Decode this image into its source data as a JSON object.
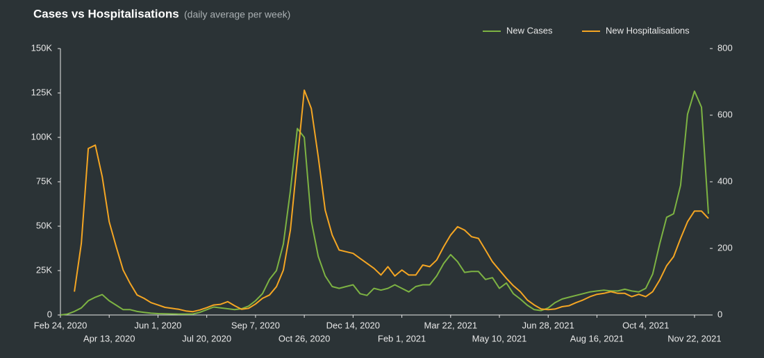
{
  "chart_data": {
    "type": "line",
    "title": "Cases vs Hospitalisations",
    "subtitle": "(daily average per week)",
    "categories": [
      "Feb 24, 2020",
      null,
      null,
      null,
      null,
      null,
      null,
      "Apr 13, 2020",
      null,
      null,
      null,
      null,
      null,
      null,
      "Jun 1, 2020",
      null,
      null,
      null,
      null,
      null,
      null,
      "Jul 20, 2020",
      null,
      null,
      null,
      null,
      null,
      null,
      "Sep 7, 2020",
      null,
      null,
      null,
      null,
      null,
      null,
      "Oct 26, 2020",
      null,
      null,
      null,
      null,
      null,
      null,
      "Dec 14, 2020",
      null,
      null,
      null,
      null,
      null,
      null,
      "Feb 1, 2021",
      null,
      null,
      null,
      null,
      null,
      null,
      "Mar 22, 2021",
      null,
      null,
      null,
      null,
      null,
      null,
      "May 10, 2021",
      null,
      null,
      null,
      null,
      null,
      null,
      "Jun 28, 2021",
      null,
      null,
      null,
      null,
      null,
      null,
      "Aug 16, 2021",
      null,
      null,
      null,
      null,
      null,
      null,
      "Oct 4, 2021",
      null,
      null,
      null,
      null,
      null,
      null,
      "Nov 22, 2021",
      null,
      null
    ],
    "series": [
      {
        "name": "New Cases",
        "color": "#7db343",
        "values": [
          0,
          500,
          2000,
          4000,
          8000,
          10000,
          11500,
          8000,
          5500,
          3000,
          3000,
          2000,
          1500,
          1000,
          800,
          700,
          600,
          500,
          500,
          500,
          1500,
          3000,
          4500,
          4000,
          3500,
          3000,
          3500,
          5000,
          8000,
          12000,
          20000,
          25000,
          40000,
          70000,
          105000,
          100000,
          53000,
          33000,
          22000,
          16000,
          15000,
          16000,
          17000,
          12000,
          11000,
          15000,
          14000,
          15000,
          17000,
          15000,
          13000,
          16000,
          17000,
          17000,
          22000,
          29000,
          34000,
          30000,
          24000,
          24500,
          24500,
          20000,
          21000,
          15000,
          18000,
          12000,
          9000,
          5500,
          3000,
          2500,
          4000,
          7000,
          9000,
          10000,
          11000,
          12000,
          13000,
          13500,
          14000,
          13500,
          13500,
          14500,
          13500,
          13000,
          15000,
          23000,
          40000,
          55000,
          57000,
          73000,
          113000,
          126000,
          117000,
          57000
        ]
      },
      {
        "name": "New Hospitalisations",
        "color": "#f5a623",
        "axis": "y2",
        "values": [
          null,
          null,
          70,
          215,
          500,
          510,
          415,
          280,
          205,
          135,
          95,
          60,
          50,
          37,
          30,
          23,
          20,
          17,
          12,
          10,
          15,
          22,
          30,
          32,
          40,
          28,
          17,
          20,
          33,
          50,
          60,
          85,
          135,
          255,
          465,
          675,
          620,
          475,
          315,
          240,
          195,
          190,
          185,
          170,
          155,
          140,
          120,
          145,
          117,
          135,
          120,
          120,
          150,
          145,
          165,
          205,
          240,
          265,
          255,
          235,
          230,
          195,
          160,
          135,
          110,
          88,
          70,
          45,
          30,
          18,
          16,
          18,
          25,
          28,
          37,
          45,
          55,
          62,
          65,
          70,
          65,
          65,
          55,
          62,
          55,
          70,
          105,
          148,
          175,
          230,
          280,
          312,
          312,
          290
        ]
      }
    ],
    "ylim": [
      0,
      150000
    ],
    "yticks": [
      0,
      {
        "value": 25000,
        "label": "25K"
      },
      {
        "value": 50000,
        "label": "50K"
      },
      {
        "value": 75000,
        "label": "75K"
      },
      {
        "value": 100000,
        "label": "100K"
      },
      {
        "value": 125000,
        "label": "125K"
      },
      {
        "value": 150000,
        "label": "150K"
      }
    ],
    "y2lim": [
      0,
      800
    ],
    "y2ticks": [
      0,
      200,
      400,
      600,
      800
    ],
    "legend": "top-right"
  }
}
